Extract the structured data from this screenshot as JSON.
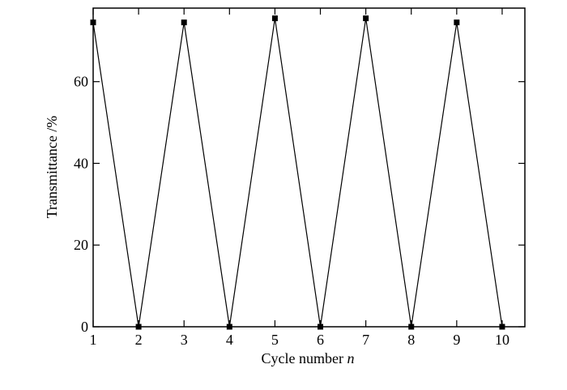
{
  "chart_data": {
    "type": "line",
    "x_label": "Cycle number",
    "x_label_symbol": "n",
    "y_label": "Transmittance /%",
    "x": [
      1,
      2,
      3,
      4,
      5,
      6,
      7,
      8,
      9,
      10
    ],
    "series": [
      {
        "color": "#000000",
        "values": [
          74.5,
          0,
          74.5,
          0,
          75.5,
          0,
          75.5,
          0,
          74.5,
          0
        ]
      }
    ],
    "xlim": [
      1,
      10.5
    ],
    "xticks": [
      1,
      2,
      3,
      4,
      5,
      6,
      7,
      8,
      9,
      10
    ],
    "ylim": [
      0,
      78
    ],
    "yticks": [
      0,
      20,
      40,
      60
    ]
  }
}
